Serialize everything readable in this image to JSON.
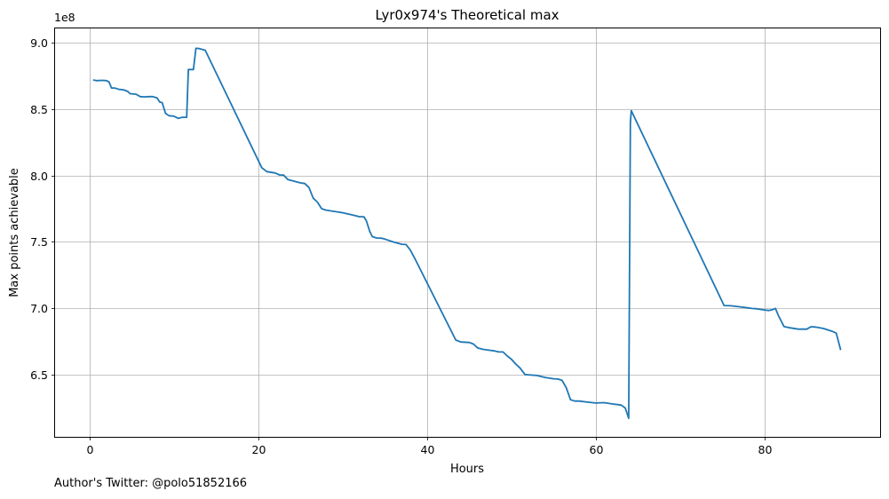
{
  "footer_text": "Author's Twitter: @polo51852166",
  "chart_data": {
    "type": "line",
    "title": "Lyr0x974's Theoretical max",
    "xlabel": "Hours",
    "ylabel": "Max points achievable",
    "offset_label": "1e8",
    "xlim": [
      -4.1,
      93.7
    ],
    "ylim": [
      6.03,
      9.11
    ],
    "x_ticks": [
      0,
      20,
      40,
      60,
      80
    ],
    "x_tick_labels": [
      "0",
      "20",
      "40",
      "60",
      "80"
    ],
    "y_ticks": [
      6.5,
      7.0,
      7.5,
      8.0,
      8.5,
      9.0
    ],
    "y_tick_labels": [
      "6.5",
      "7.0",
      "7.5",
      "8.0",
      "8.5",
      "9.0"
    ],
    "grid": true,
    "series_color": "#1f77b4",
    "series": [
      {
        "x": [
          0.5,
          0.8,
          1.5,
          2.0,
          2.3,
          2.6,
          3.0,
          3.5,
          4.0,
          4.5,
          4.8,
          5.5,
          6.0,
          6.5,
          7.0,
          7.5,
          8.0,
          8.3,
          8.6,
          9.0,
          9.4,
          10.0,
          10.5,
          11.0,
          11.5,
          11.7,
          11.9,
          12.3,
          12.6,
          13.0,
          13.7,
          20.4,
          21.0,
          22.0,
          22.5,
          23.0,
          23.5,
          24.0,
          24.5,
          25.0,
          25.5,
          26.0,
          26.5,
          27.0,
          27.5,
          28.0,
          30.0,
          31.0,
          32.0,
          32.5,
          32.8,
          33.2,
          33.5,
          34.0,
          34.6,
          35.0,
          36.0,
          37.0,
          37.5,
          38.0,
          38.5,
          43.4,
          44.0,
          45.0,
          45.5,
          46.0,
          46.6,
          47.5,
          48.0,
          48.5,
          49.0,
          49.5,
          50.0,
          50.5,
          51.0,
          51.6,
          52.0,
          53.0,
          54.0,
          55.0,
          55.5,
          56.0,
          56.5,
          57.0,
          57.5,
          58.0,
          59.0,
          60.0,
          61.0,
          62.0,
          63.0,
          63.5,
          63.9,
          64.1,
          64.2,
          75.2,
          76.0,
          77.0,
          78.0,
          78.5,
          79.0,
          80.0,
          80.5,
          81.0,
          81.3,
          81.6,
          82.0,
          82.3,
          83.0,
          84.0,
          85.0,
          85.5,
          86.0,
          87.0,
          88.0,
          88.5,
          89.0
        ],
        "y": [
          8.72,
          8.716,
          8.718,
          8.716,
          8.706,
          8.66,
          8.66,
          8.65,
          8.647,
          8.635,
          8.618,
          8.614,
          8.596,
          8.594,
          8.596,
          8.596,
          8.585,
          8.555,
          8.55,
          8.47,
          8.452,
          8.448,
          8.432,
          8.44,
          8.44,
          8.8,
          8.8,
          8.8,
          8.96,
          8.958,
          8.945,
          8.06,
          8.03,
          8.02,
          8.005,
          8.004,
          7.97,
          7.962,
          7.953,
          7.945,
          7.94,
          7.91,
          7.83,
          7.8,
          7.75,
          7.74,
          7.72,
          7.705,
          7.69,
          7.69,
          7.66,
          7.58,
          7.54,
          7.53,
          7.528,
          7.521,
          7.5,
          7.482,
          7.48,
          7.44,
          7.38,
          6.76,
          6.745,
          6.742,
          6.73,
          6.7,
          6.69,
          6.682,
          6.678,
          6.67,
          6.67,
          6.64,
          6.615,
          6.58,
          6.55,
          6.5,
          6.498,
          6.493,
          6.478,
          6.468,
          6.466,
          6.456,
          6.4,
          6.31,
          6.3,
          6.3,
          6.292,
          6.285,
          6.288,
          6.278,
          6.27,
          6.247,
          6.17,
          8.4,
          8.49,
          7.02,
          7.018,
          7.011,
          7.003,
          6.998,
          6.996,
          6.987,
          6.983,
          6.99,
          6.998,
          6.95,
          6.9,
          6.862,
          6.852,
          6.842,
          6.842,
          6.86,
          6.858,
          6.847,
          6.826,
          6.812,
          6.69
        ]
      }
    ]
  }
}
